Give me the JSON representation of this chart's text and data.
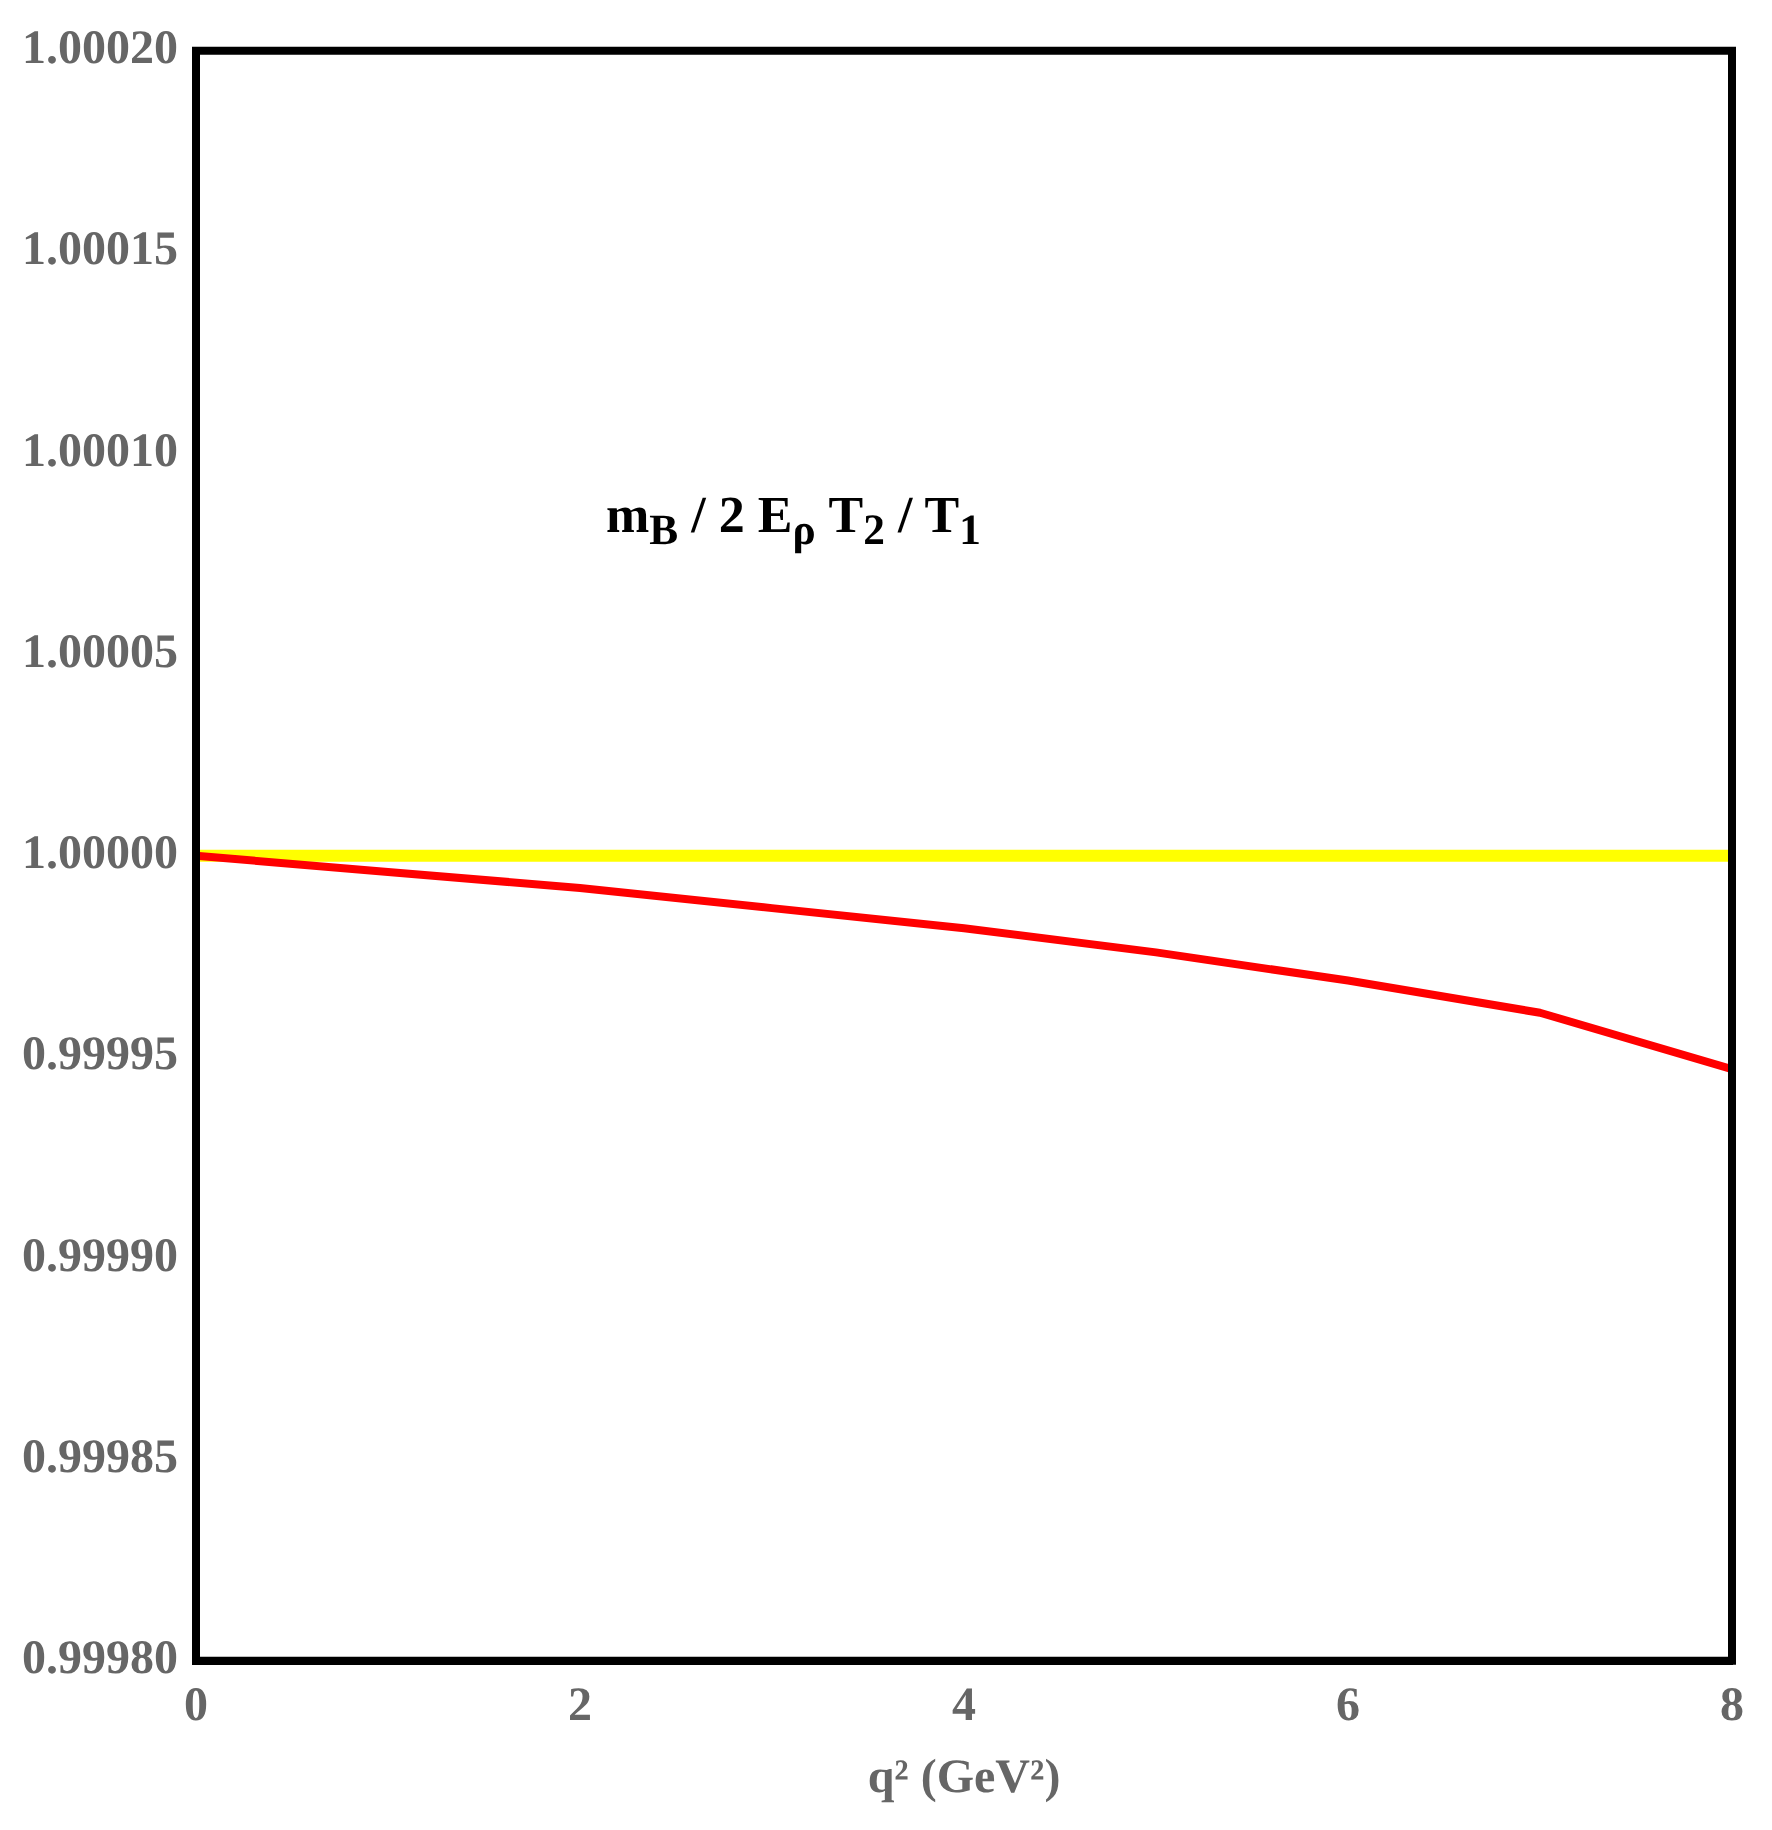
{
  "chart_data": {
    "type": "line",
    "xlabel": "q² (GeV²)",
    "annotations": [
      "m$_{B}$ / 2 E$_{ρ}$  T$_{2}$ / T$_{1}$"
    ],
    "x": [
      0,
      1,
      2,
      3,
      4,
      5,
      6,
      7,
      8
    ],
    "series": [
      {
        "color": "#ff0000",
        "values": [
          1.0,
          0.999996,
          0.999992,
          0.999987,
          0.999982,
          0.999976,
          0.999969,
          0.999961,
          0.999947
        ]
      },
      {
        "color": "#ffff00",
        "x": [
          0,
          8
        ],
        "values": [
          1.0,
          1.0
        ]
      }
    ],
    "xlim": [
      0,
      8
    ],
    "xticks": [
      0,
      2,
      4,
      6,
      8
    ],
    "ylim": [
      0.9998,
      1.0002
    ],
    "yticks": [
      {
        "value": 0.9998,
        "label": "0.99980"
      },
      {
        "value": 0.99985,
        "label": "0.99985"
      },
      {
        "value": 0.9999,
        "label": "0.99990"
      },
      {
        "value": 0.99995,
        "label": "0.99995"
      },
      {
        "value": 1.0,
        "label": "1.00000"
      },
      {
        "value": 1.00005,
        "label": "1.00005"
      },
      {
        "value": 1.0001,
        "label": "1.00010"
      },
      {
        "value": 1.00015,
        "label": "1.00015"
      },
      {
        "value": 1.0002,
        "label": "1.00020"
      }
    ],
    "grid": false,
    "legend": false
  }
}
